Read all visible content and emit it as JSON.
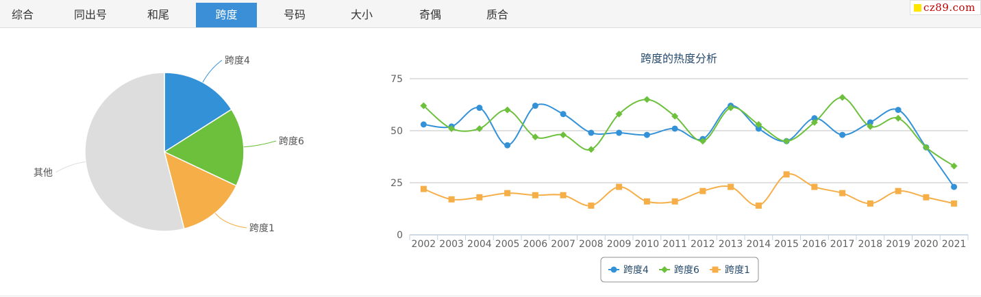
{
  "tabs": [
    {
      "label": "综合"
    },
    {
      "label": "同出号"
    },
    {
      "label": "和尾"
    },
    {
      "label": "跨度",
      "active": true
    },
    {
      "label": "号码"
    },
    {
      "label": "大小"
    },
    {
      "label": "奇偶"
    },
    {
      "label": "质合"
    }
  ],
  "logo": {
    "text": "cz89.com",
    "square_color": "#ffe600",
    "text_color": "#c00000"
  },
  "chart_data": [
    {
      "type": "pie",
      "title": "",
      "slices": [
        {
          "name": "跨度4",
          "value": 16,
          "color": "#3391d8"
        },
        {
          "name": "跨度6",
          "value": 16,
          "color": "#6cc03c"
        },
        {
          "name": "跨度1",
          "value": 14,
          "color": "#f5ae48"
        },
        {
          "name": "其他",
          "value": 54,
          "color": "#dddddd"
        }
      ]
    },
    {
      "type": "line",
      "title": "跨度的热度分析",
      "categories": [
        "2002",
        "2003",
        "2004",
        "2005",
        "2006",
        "2007",
        "2008",
        "2009",
        "2010",
        "2011",
        "2012",
        "2013",
        "2014",
        "2015",
        "2016",
        "2017",
        "2018",
        "2019",
        "2020",
        "2021"
      ],
      "ylim": [
        0,
        75
      ],
      "yticks": [
        0,
        25,
        50,
        75
      ],
      "grid": true,
      "legend_position": "bottom-center",
      "series": [
        {
          "name": "跨度4",
          "marker": "circle",
          "color": "#3391d8",
          "values": [
            53,
            52,
            61,
            43,
            62,
            58,
            49,
            49,
            48,
            51,
            46,
            62,
            51,
            45,
            56,
            48,
            54,
            60,
            42,
            23
          ]
        },
        {
          "name": "跨度6",
          "marker": "diamond",
          "color": "#6cc03c",
          "values": [
            62,
            51,
            51,
            60,
            47,
            48,
            41,
            58,
            65,
            57,
            45,
            61,
            53,
            45,
            54,
            66,
            52,
            56,
            42,
            33
          ]
        },
        {
          "name": "跨度1",
          "marker": "square",
          "color": "#f5ae48",
          "values": [
            22,
            17,
            18,
            20,
            19,
            19,
            14,
            23,
            16,
            16,
            21,
            23,
            14,
            29,
            23,
            20,
            15,
            21,
            18,
            15
          ]
        }
      ]
    }
  ]
}
